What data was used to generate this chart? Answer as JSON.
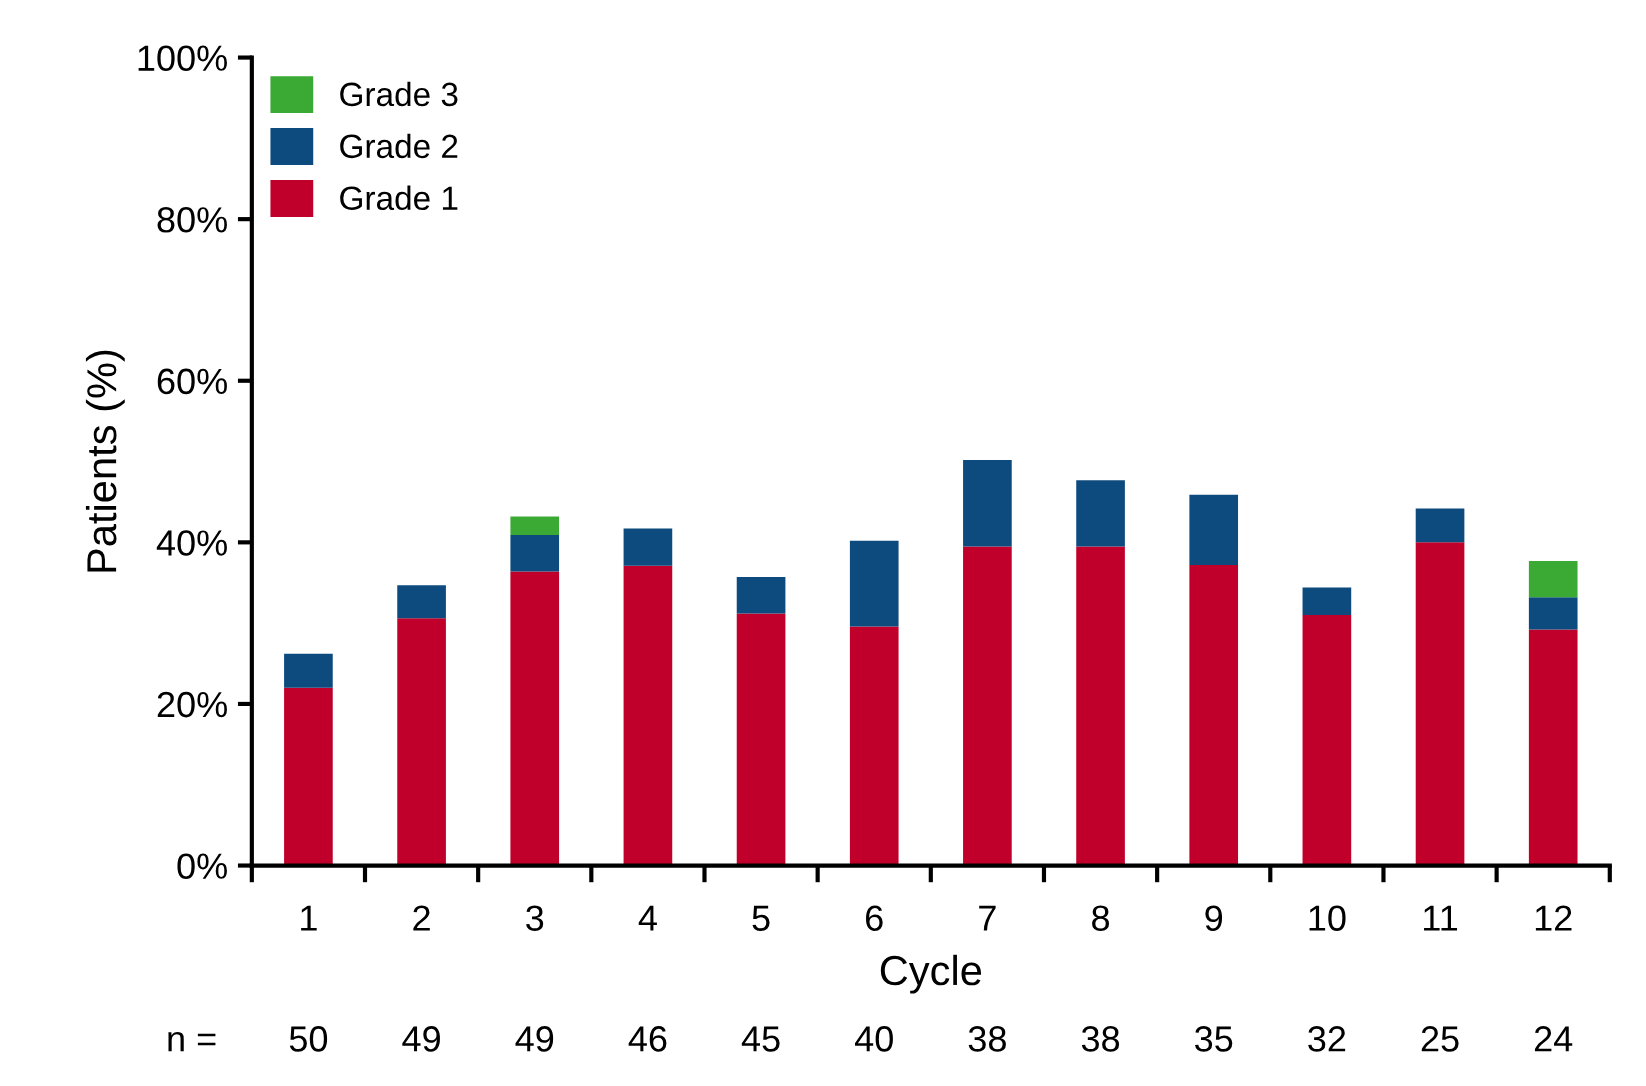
{
  "chart_data": {
    "type": "bar",
    "stacked": true,
    "xlabel": "Cycle",
    "ylabel": "Patients (%)",
    "categories": [
      "1",
      "2",
      "3",
      "4",
      "5",
      "6",
      "7",
      "8",
      "9",
      "10",
      "11",
      "12"
    ],
    "series": [
      {
        "name": "Grade 1",
        "color": "#c0002a",
        "values": [
          22,
          30.6,
          36.4,
          37.1,
          31.2,
          29.6,
          39.5,
          39.5,
          37.2,
          31,
          40,
          29.2
        ]
      },
      {
        "name": "Grade 2",
        "color": "#0d4a7e",
        "values": [
          4.2,
          4.1,
          4.5,
          4.6,
          4.5,
          10.6,
          10.7,
          8.2,
          8.7,
          3.4,
          4.2,
          4
        ]
      },
      {
        "name": "Grade 3",
        "color": "#3aaa35",
        "values": [
          0,
          0,
          2.3,
          0,
          0,
          0,
          0,
          0,
          0,
          0,
          0,
          4.5
        ]
      }
    ],
    "ylim": [
      0,
      100
    ],
    "yticks": [
      {
        "value": 0,
        "label": "0%"
      },
      {
        "value": 20,
        "label": "20%"
      },
      {
        "value": 40,
        "label": "40%"
      },
      {
        "value": 60,
        "label": "60%"
      },
      {
        "value": 80,
        "label": "80%"
      },
      {
        "value": 100,
        "label": "100%"
      }
    ],
    "legend": "top left",
    "grid": false,
    "annotations": [
      "n =",
      "50",
      "49",
      "49",
      "46",
      "45",
      "40",
      "38",
      "38",
      "35",
      "32",
      "25",
      "24"
    ]
  }
}
